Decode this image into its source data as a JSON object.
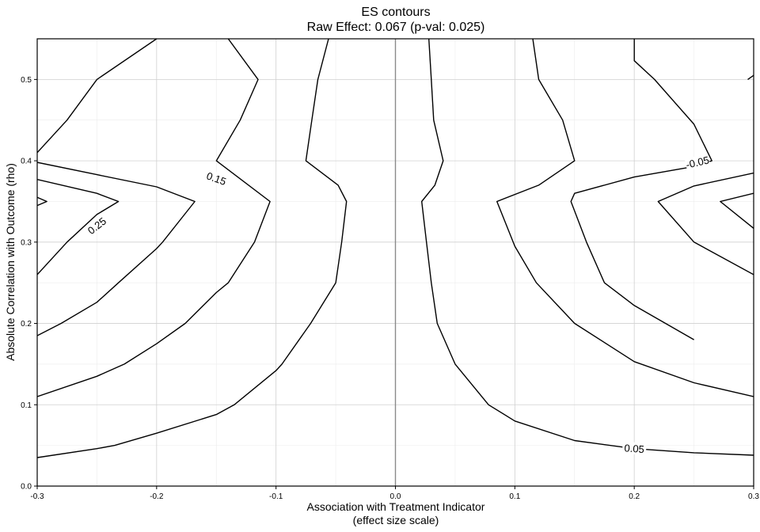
{
  "chart_data": {
    "type": "contour",
    "title": "ES contours",
    "subtitle": "Raw Effect: 0.067 (p-val: 0.025)",
    "xlabel_line1": "Association with Treatment Indicator",
    "xlabel_line2": "(effect size scale)",
    "ylabel": "Absolute Correlation with Outcome (rho)",
    "xlim": [
      -0.3,
      0.3
    ],
    "ylim": [
      0,
      0.55
    ],
    "x_ticks": [
      -0.3,
      -0.2,
      -0.1,
      0.0,
      0.1,
      0.2,
      0.3
    ],
    "x_tick_labels": [
      "-0.3",
      "-0.2",
      "-0.1",
      "0.0",
      "0.1",
      "0.2",
      "0.3"
    ],
    "y_ticks": [
      0.0,
      0.1,
      0.2,
      0.3,
      0.4,
      0.5
    ],
    "y_tick_labels": [
      "0.0",
      "0.1",
      "0.2",
      "0.3",
      "0.4",
      "0.5"
    ],
    "grid": true,
    "reference_line_x": 0.0,
    "contours": [
      {
        "points": [
          [
            -0.3,
            0.035
          ],
          [
            -0.25,
            0.046
          ],
          [
            -0.235,
            0.05
          ],
          [
            -0.2,
            0.065
          ],
          [
            -0.15,
            0.088
          ],
          [
            -0.135,
            0.1
          ],
          [
            -0.1,
            0.142
          ],
          [
            -0.095,
            0.15
          ],
          [
            -0.071,
            0.2
          ],
          [
            -0.05,
            0.25
          ],
          [
            -0.045,
            0.3
          ],
          [
            -0.041,
            0.35
          ],
          [
            -0.048,
            0.37
          ],
          [
            -0.075,
            0.4
          ],
          [
            -0.07,
            0.45
          ],
          [
            -0.065,
            0.5
          ],
          [
            -0.056,
            0.55
          ]
        ]
      },
      {
        "points": [
          [
            -0.3,
            0.11
          ],
          [
            -0.25,
            0.135
          ],
          [
            -0.227,
            0.15
          ],
          [
            -0.2,
            0.175
          ],
          [
            -0.176,
            0.2
          ],
          [
            -0.15,
            0.238
          ],
          [
            -0.14,
            0.25
          ],
          [
            -0.118,
            0.3
          ],
          [
            -0.105,
            0.35
          ],
          [
            -0.15,
            0.4
          ],
          [
            -0.13,
            0.45
          ],
          [
            -0.115,
            0.5
          ],
          [
            -0.14,
            0.55
          ]
        ]
      },
      {
        "points": [
          [
            -0.3,
            0.185
          ],
          [
            -0.28,
            0.2
          ],
          [
            -0.25,
            0.226
          ],
          [
            -0.232,
            0.25
          ],
          [
            -0.2,
            0.292
          ],
          [
            -0.195,
            0.3
          ],
          [
            -0.168,
            0.35
          ],
          [
            -0.2,
            0.368
          ],
          [
            -0.25,
            0.383
          ],
          [
            -0.3,
            0.398
          ]
        ]
      },
      {
        "points": [
          [
            -0.3,
            0.26
          ],
          [
            -0.275,
            0.3
          ],
          [
            -0.25,
            0.334
          ],
          [
            -0.232,
            0.35
          ],
          [
            -0.25,
            0.36
          ],
          [
            -0.3,
            0.377
          ]
        ]
      },
      {
        "points": [
          [
            -0.3,
            0.345
          ],
          [
            -0.292,
            0.35
          ],
          [
            -0.3,
            0.355
          ]
        ]
      },
      {
        "points": [
          [
            -0.3,
            0.41
          ],
          [
            -0.275,
            0.45
          ],
          [
            -0.25,
            0.5
          ],
          [
            -0.2,
            0.55
          ]
        ]
      },
      {
        "points": [
          [
            0.028,
            0.55
          ],
          [
            0.03,
            0.5
          ],
          [
            0.032,
            0.45
          ],
          [
            0.04,
            0.4
          ],
          [
            0.033,
            0.37
          ],
          [
            0.022,
            0.35
          ],
          [
            0.026,
            0.3
          ],
          [
            0.03,
            0.25
          ],
          [
            0.035,
            0.2
          ],
          [
            0.05,
            0.15
          ],
          [
            0.078,
            0.1
          ],
          [
            0.1,
            0.08
          ],
          [
            0.15,
            0.056
          ],
          [
            0.2,
            0.046
          ],
          [
            0.25,
            0.041
          ],
          [
            0.3,
            0.038
          ]
        ]
      },
      {
        "points": [
          [
            0.115,
            0.55
          ],
          [
            0.12,
            0.5
          ],
          [
            0.14,
            0.45
          ],
          [
            0.15,
            0.4
          ],
          [
            0.12,
            0.37
          ],
          [
            0.085,
            0.35
          ],
          [
            0.1,
            0.295
          ],
          [
            0.118,
            0.25
          ],
          [
            0.15,
            0.2
          ],
          [
            0.2,
            0.153
          ],
          [
            0.25,
            0.127
          ],
          [
            0.3,
            0.11
          ]
        ]
      },
      {
        "points": [
          [
            0.2,
            0.55
          ],
          [
            0.2,
            0.523
          ],
          [
            0.217,
            0.5
          ],
          [
            0.25,
            0.445
          ],
          [
            0.265,
            0.4
          ],
          [
            0.25,
            0.393
          ],
          [
            0.2,
            0.38
          ],
          [
            0.15,
            0.36
          ],
          [
            0.147,
            0.35
          ],
          [
            0.16,
            0.3
          ],
          [
            0.175,
            0.25
          ],
          [
            0.2,
            0.222
          ],
          [
            0.25,
            0.18
          ]
        ]
      },
      {
        "points": [
          [
            0.3,
            0.385
          ],
          [
            0.25,
            0.369
          ],
          [
            0.22,
            0.35
          ],
          [
            0.25,
            0.3
          ],
          [
            0.3,
            0.26
          ]
        ]
      },
      {
        "points": [
          [
            0.3,
            0.36
          ],
          [
            0.272,
            0.35
          ],
          [
            0.3,
            0.317
          ]
        ]
      },
      {
        "points": [
          [
            0.305,
            0.55
          ],
          [
            0.3,
            0.505
          ],
          [
            0.295,
            0.5
          ]
        ]
      }
    ],
    "contour_labels": [
      {
        "text": "0.25",
        "x": -0.25,
        "y": 0.32,
        "angle": -38
      },
      {
        "text": "0.15",
        "x": -0.15,
        "y": 0.378,
        "angle": 20
      },
      {
        "text": "-0.05",
        "x": 0.253,
        "y": 0.398,
        "angle": -13
      },
      {
        "text": "0.05",
        "x": 0.2,
        "y": 0.046,
        "angle": 4
      }
    ]
  }
}
